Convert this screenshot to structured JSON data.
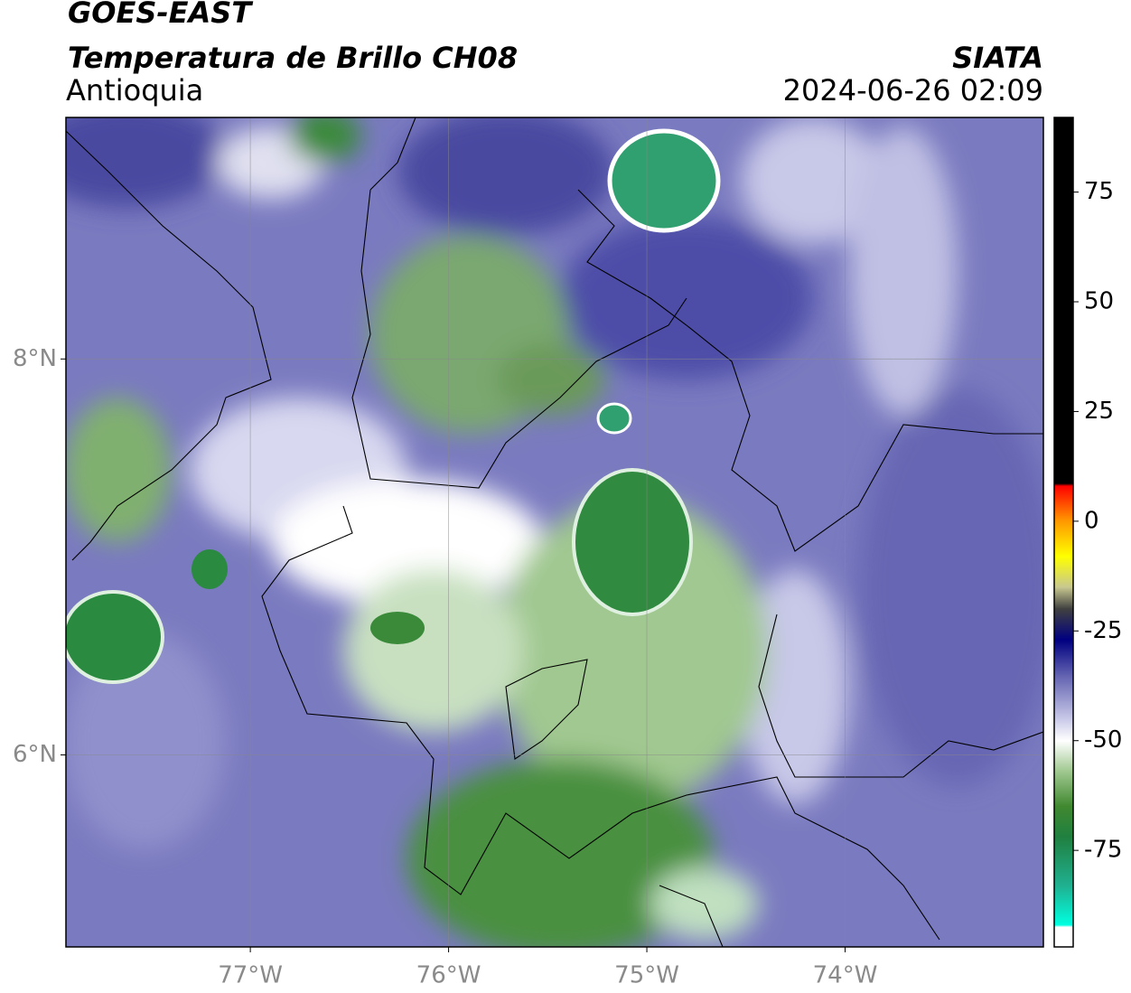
{
  "header": {
    "title": "GOES-EAST",
    "subtitle": "Temperatura de Brillo CH08",
    "region": "Antioquia",
    "source": "SIATA",
    "datetime": "2024-06-26 02:09"
  },
  "map": {
    "xlim": [
      -77.93,
      -73.0
    ],
    "ylim": [
      5.03,
      9.22
    ],
    "xticks": [
      {
        "value": -77,
        "label": "77°W"
      },
      {
        "value": -76,
        "label": "76°W"
      },
      {
        "value": -75,
        "label": "75°W"
      },
      {
        "value": -74,
        "label": "74°W"
      }
    ],
    "yticks": [
      {
        "value": 6,
        "label": "6°N"
      },
      {
        "value": 8,
        "label": "8°N"
      }
    ],
    "grid": true
  },
  "colorbar": {
    "lim": [
      -97,
      92
    ],
    "ticks": [
      -75,
      -50,
      -25,
      0,
      25,
      50,
      75
    ],
    "colormap": [
      {
        "value": 92,
        "color": "#000000"
      },
      {
        "value": 8.6,
        "color": "#000000"
      },
      {
        "value": 8,
        "color": "#ff0000"
      },
      {
        "value": 0,
        "color": "#ff9900"
      },
      {
        "value": -8,
        "color": "#ffff00"
      },
      {
        "value": -15,
        "color": "#c8c890"
      },
      {
        "value": -20,
        "color": "#404040"
      },
      {
        "value": -27,
        "color": "#000080"
      },
      {
        "value": -35,
        "color": "#6060b0"
      },
      {
        "value": -45,
        "color": "#c8c8e8"
      },
      {
        "value": -50,
        "color": "#ffffff"
      },
      {
        "value": -57,
        "color": "#a0c890"
      },
      {
        "value": -65,
        "color": "#408830"
      },
      {
        "value": -72,
        "color": "#208040"
      },
      {
        "value": -83,
        "color": "#20b090"
      },
      {
        "value": -92,
        "color": "#00ffe0"
      },
      {
        "value": -92.5,
        "color": "#ffffff"
      },
      {
        "value": -97,
        "color": "#ffffff"
      }
    ]
  }
}
